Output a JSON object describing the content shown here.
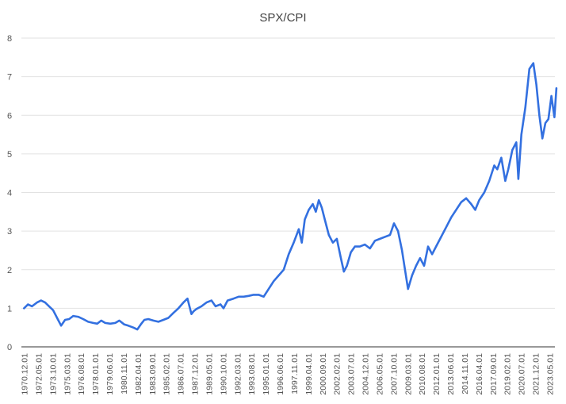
{
  "chart_data": {
    "type": "line",
    "title": "SPX/CPI",
    "xlabel": "",
    "ylabel": "",
    "ylim": [
      0,
      8
    ],
    "yticks": [
      "0",
      "1",
      "2",
      "3",
      "4",
      "5",
      "6",
      "7",
      "8"
    ],
    "grid": true,
    "legend": "none",
    "xtick_labels": [
      "1970.12.01",
      "1972.05.01",
      "1973.10.01",
      "1975.03.01",
      "1976.08.01",
      "1978.01.01",
      "1979.06.01",
      "1980.11.01",
      "1982.04.01",
      "1983.09.01",
      "1985.02.01",
      "1986.07.01",
      "1987.12.01",
      "1989.05.01",
      "1990.10.01",
      "1992.03.01",
      "1993.08.01",
      "1995.01.01",
      "1996.06.01",
      "1997.11.01",
      "1999.04.01",
      "2000.09.01",
      "2002.02.01",
      "2003.07.01",
      "2004.12.01",
      "2006.05.01",
      "2007.10.01",
      "2009.03.01",
      "2010.08.01",
      "2012.01.01",
      "2013.06.01",
      "2014.11.01",
      "2016.04.01",
      "2017.09.01",
      "2019.02.01",
      "2020.07.01",
      "2021.12.01",
      "2023.05.01"
    ],
    "series": [
      {
        "color": "#3370e0",
        "x": [
          1970.9,
          1971.3,
          1971.7,
          1972.2,
          1972.6,
          1973.0,
          1973.4,
          1973.8,
          1974.2,
          1974.6,
          1975.0,
          1975.4,
          1975.8,
          1976.3,
          1976.8,
          1977.3,
          1977.8,
          1978.2,
          1978.6,
          1979.0,
          1979.5,
          1980.0,
          1980.4,
          1980.9,
          1981.3,
          1981.8,
          1982.2,
          1982.6,
          1982.9,
          1983.3,
          1983.8,
          1984.3,
          1984.8,
          1985.3,
          1985.8,
          1986.3,
          1986.8,
          1987.2,
          1987.6,
          1987.8,
          1988.1,
          1988.6,
          1989.1,
          1989.6,
          1990.0,
          1990.5,
          1990.8,
          1991.2,
          1991.8,
          1992.3,
          1992.8,
          1993.3,
          1993.8,
          1994.3,
          1994.8,
          1995.3,
          1995.8,
          1996.3,
          1996.8,
          1997.3,
          1997.8,
          1998.3,
          1998.6,
          1998.9,
          1999.3,
          1999.7,
          2000.0,
          2000.3,
          2000.6,
          2000.9,
          2001.3,
          2001.7,
          2002.1,
          2002.5,
          2002.8,
          2003.1,
          2003.5,
          2003.9,
          2004.4,
          2004.9,
          2005.4,
          2005.9,
          2006.4,
          2006.9,
          2007.4,
          2007.8,
          2008.2,
          2008.6,
          2008.9,
          2009.2,
          2009.6,
          2010.0,
          2010.4,
          2010.8,
          2011.2,
          2011.6,
          2012.0,
          2012.5,
          2013.0,
          2013.5,
          2014.0,
          2014.5,
          2015.0,
          2015.5,
          2015.9,
          2016.3,
          2016.8,
          2017.3,
          2017.8,
          2018.1,
          2018.5,
          2018.9,
          2019.2,
          2019.6,
          2020.0,
          2020.2,
          2020.5,
          2020.9,
          2021.3,
          2021.7,
          2022.0,
          2022.3,
          2022.6,
          2022.9,
          2023.2,
          2023.5,
          2023.8,
          2024.0
        ],
        "y": [
          1.0,
          1.1,
          1.05,
          1.15,
          1.2,
          1.15,
          1.05,
          0.95,
          0.75,
          0.55,
          0.7,
          0.72,
          0.8,
          0.78,
          0.72,
          0.65,
          0.62,
          0.6,
          0.68,
          0.62,
          0.6,
          0.62,
          0.68,
          0.58,
          0.55,
          0.5,
          0.45,
          0.6,
          0.7,
          0.72,
          0.68,
          0.65,
          0.7,
          0.75,
          0.88,
          1.0,
          1.15,
          1.25,
          0.85,
          0.92,
          0.98,
          1.05,
          1.15,
          1.2,
          1.05,
          1.1,
          1.0,
          1.2,
          1.25,
          1.3,
          1.3,
          1.32,
          1.35,
          1.35,
          1.3,
          1.5,
          1.7,
          1.85,
          2.0,
          2.4,
          2.7,
          3.05,
          2.7,
          3.3,
          3.55,
          3.7,
          3.5,
          3.8,
          3.6,
          3.3,
          2.9,
          2.7,
          2.8,
          2.3,
          1.95,
          2.1,
          2.45,
          2.6,
          2.6,
          2.65,
          2.55,
          2.75,
          2.8,
          2.85,
          2.9,
          3.2,
          3.0,
          2.5,
          2.0,
          1.5,
          1.85,
          2.1,
          2.3,
          2.1,
          2.6,
          2.4,
          2.6,
          2.85,
          3.1,
          3.35,
          3.55,
          3.75,
          3.85,
          3.7,
          3.55,
          3.8,
          4.0,
          4.3,
          4.7,
          4.6,
          4.9,
          4.3,
          4.6,
          5.1,
          5.3,
          4.35,
          5.5,
          6.2,
          7.2,
          7.35,
          6.8,
          6.0,
          5.4,
          5.8,
          5.9,
          6.5,
          5.95,
          6.7
        ]
      }
    ]
  }
}
